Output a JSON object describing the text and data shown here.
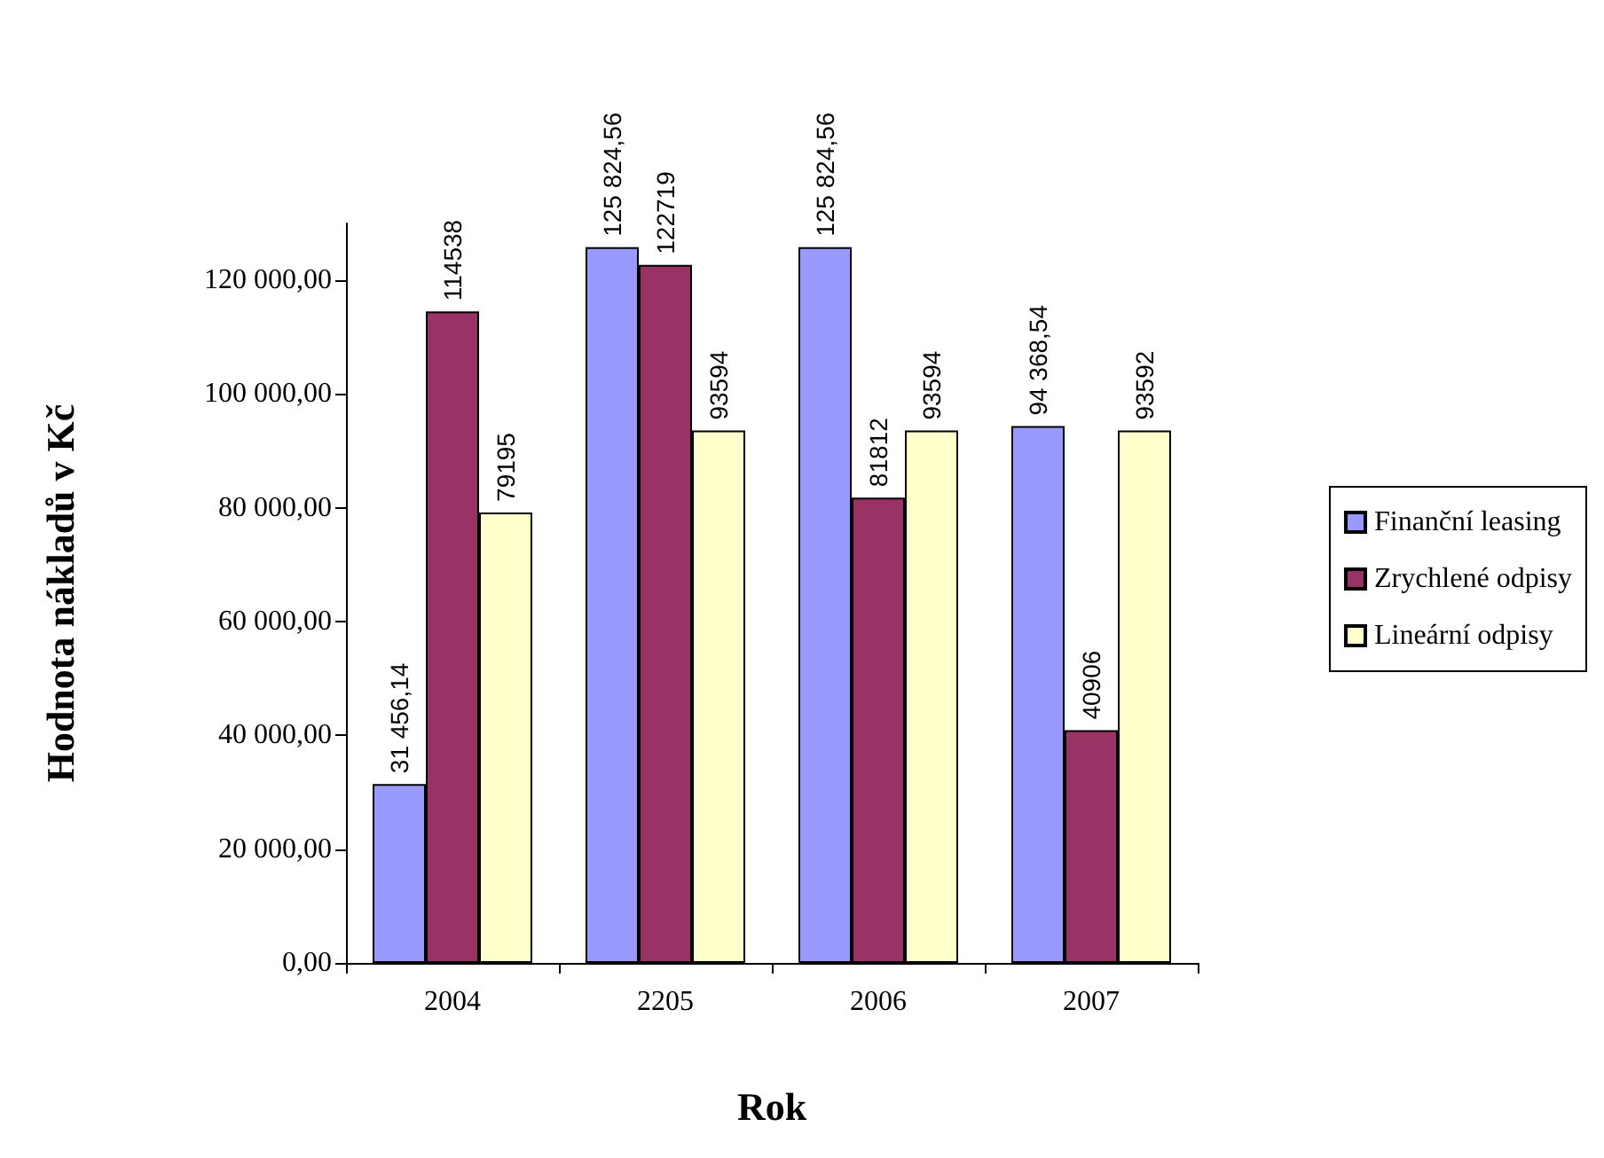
{
  "chart_data": {
    "type": "bar",
    "xlabel": "Rok",
    "ylabel": "Hodnota nákladů v Kč",
    "categories": [
      "2004",
      "2205",
      "2006",
      "2007"
    ],
    "series": [
      {
        "name": "Finanční leasing",
        "color": "#9999ff",
        "values": [
          31456.14,
          125824.56,
          125824.56,
          94368.54
        ],
        "value_labels": [
          "31 456,14",
          "125 824,56",
          "125 824,56",
          "94 368,54"
        ]
      },
      {
        "name": "Zrychlené odpisy",
        "color": "#993366",
        "values": [
          114538,
          122719,
          81812,
          40906
        ],
        "value_labels": [
          "114538",
          "122719",
          "81812",
          "40906"
        ]
      },
      {
        "name": "Lineární odpisy",
        "color": "#ffffcc",
        "values": [
          79195,
          93594,
          93594,
          93592
        ],
        "value_labels": [
          "79195",
          "93594",
          "93594",
          "93592"
        ]
      }
    ],
    "ylim": [
      0,
      130000
    ],
    "yticks": [
      {
        "value": 0,
        "label": "0,00"
      },
      {
        "value": 20000,
        "label": "20 000,00"
      },
      {
        "value": 40000,
        "label": "40 000,00"
      },
      {
        "value": 60000,
        "label": "60 000,00"
      },
      {
        "value": 80000,
        "label": "80 000,00"
      },
      {
        "value": 100000,
        "label": "100 000,00"
      },
      {
        "value": 120000,
        "label": "120 000,00"
      }
    ],
    "grid": false,
    "legend": "right"
  }
}
